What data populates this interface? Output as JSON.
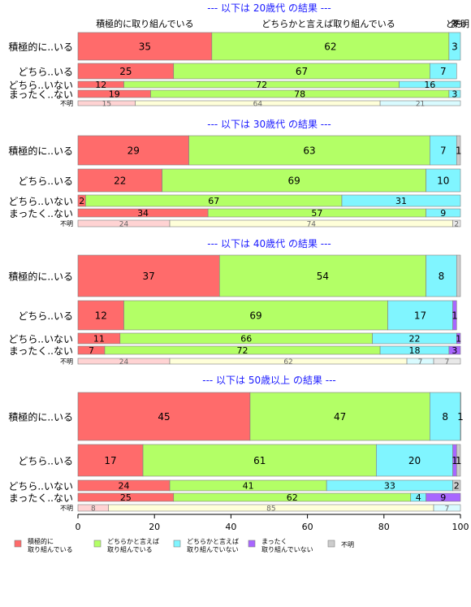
{
  "chart_data": {
    "type": "bar",
    "orientation": "horizontal",
    "stacked": true,
    "xlim": [
      0,
      100
    ],
    "x_ticks": [
      "0",
      "20",
      "40",
      "60",
      "80",
      "100"
    ],
    "grid": false,
    "legend_position": "bottom-left",
    "top_labels": [
      {
        "text": "積極的に取り組んでいる",
        "x": 17.5
      },
      {
        "text": "どちらかと言えば取り組んでいる",
        "x": 65.5
      },
      {
        "text": "どち",
        "x": 98.5
      },
      {
        "text": "まっ",
        "x": 99.5
      },
      {
        "text": "不明",
        "x": 100
      }
    ],
    "series": [
      {
        "name": "積極的に\n取り組んでいる",
        "color": "#ff6b6b"
      },
      {
        "name": "どちらかと言えば\n取り組んでいる",
        "color": "#b3ff66"
      },
      {
        "name": "どちらかと言えば\n取り組んでいない",
        "color": "#80f5ff"
      },
      {
        "name": "まったく\n取り組んでいない",
        "color": "#a866ff"
      },
      {
        "name": "不明",
        "color": "#cccccc"
      }
    ],
    "panels": [
      {
        "title": "--- 以下は 20歳代 の結果 ---",
        "rows": [
          {
            "label": "積極的に..いる",
            "values": [
              35,
              62,
              3,
              0,
              0
            ],
            "labels": [
              "35",
              "62",
              "3",
              "",
              ""
            ],
            "size": "large"
          },
          {
            "label": "どちら..いる",
            "values": [
              25,
              67,
              7,
              0,
              0
            ],
            "labels": [
              "25",
              "67",
              "7",
              "",
              ""
            ],
            "size": "medium"
          },
          {
            "label": "どちら..いない",
            "values": [
              12,
              72,
              16,
              0,
              0
            ],
            "labels": [
              "12",
              "72",
              "16",
              "",
              ""
            ],
            "size": "small"
          },
          {
            "label": "まったく..ない",
            "values": [
              19,
              78,
              3,
              0,
              0
            ],
            "labels": [
              "19",
              "78",
              "3",
              "",
              ""
            ],
            "size": "small"
          },
          {
            "label": "不明",
            "values": [
              15,
              64,
              21,
              0,
              0
            ],
            "labels": [
              "15",
              "64",
              "21",
              "",
              ""
            ],
            "size": "tiny"
          }
        ]
      },
      {
        "title": "--- 以下は 30歳代 の結果 ---",
        "rows": [
          {
            "label": "積極的に..いる",
            "values": [
              29,
              63,
              7,
              0,
              1
            ],
            "labels": [
              "29",
              "63",
              "7",
              "",
              "1"
            ],
            "size": "large"
          },
          {
            "label": "どちら..いる",
            "values": [
              22,
              69,
              10,
              0,
              0
            ],
            "labels": [
              "22",
              "69",
              "10",
              "",
              ""
            ],
            "size": "medium"
          },
          {
            "label": "どちら..いない",
            "values": [
              2,
              67,
              31,
              0,
              0
            ],
            "labels": [
              "2",
              "67",
              "31",
              "",
              ""
            ],
            "size": "small"
          },
          {
            "label": "まったく..ない",
            "values": [
              34,
              57,
              9,
              0,
              0
            ],
            "labels": [
              "34",
              "57",
              "9",
              "",
              ""
            ],
            "size": "small"
          },
          {
            "label": "不明",
            "values": [
              24,
              74,
              0,
              0,
              2
            ],
            "labels": [
              "24",
              "74",
              "",
              "",
              "2"
            ],
            "size": "tiny"
          }
        ]
      },
      {
        "title": "--- 以下は 40歳代 の結果 ---",
        "rows": [
          {
            "label": "積極的に..いる",
            "values": [
              37,
              54,
              8,
              0,
              1
            ],
            "labels": [
              "37",
              "54",
              "8",
              "",
              ""
            ],
            "size": "large"
          },
          {
            "label": "どちら..いる",
            "values": [
              12,
              69,
              17,
              1,
              0
            ],
            "labels": [
              "12",
              "69",
              "17",
              "1",
              ""
            ],
            "size": "medium"
          },
          {
            "label": "どちら..いない",
            "values": [
              11,
              66,
              22,
              1,
              0
            ],
            "labels": [
              "11",
              "66",
              "22",
              "1",
              ""
            ],
            "size": "small"
          },
          {
            "label": "まったく..ない",
            "values": [
              7,
              72,
              18,
              3,
              0
            ],
            "labels": [
              "7",
              "72",
              "18",
              "3",
              ""
            ],
            "size": "small"
          },
          {
            "label": "不明",
            "values": [
              24,
              62,
              7,
              0,
              7
            ],
            "labels": [
              "24",
              "62",
              "7",
              "",
              "7"
            ],
            "size": "tiny"
          }
        ]
      },
      {
        "title": "--- 以下は 50歳以上 の結果 ---",
        "rows": [
          {
            "label": "積極的に..いる",
            "values": [
              45,
              47,
              8,
              0,
              1
            ],
            "labels": [
              "45",
              "47",
              "8",
              "",
              "1"
            ],
            "size": "large"
          },
          {
            "label": "どちら..いる",
            "values": [
              17,
              61,
              20,
              1,
              1
            ],
            "labels": [
              "17",
              "61",
              "20",
              "1",
              "1"
            ],
            "size": "medium"
          },
          {
            "label": "どちら..いない",
            "values": [
              24,
              41,
              33,
              0,
              2
            ],
            "labels": [
              "24",
              "41",
              "33",
              "",
              "2"
            ],
            "size": "small"
          },
          {
            "label": "まったく..ない",
            "values": [
              25,
              62,
              4,
              9,
              0
            ],
            "labels": [
              "25",
              "62",
              "4",
              "9",
              ""
            ],
            "size": "small"
          },
          {
            "label": "不明",
            "values": [
              8,
              85,
              7,
              0,
              0
            ],
            "labels": [
              "8",
              "85",
              "7",
              "",
              ""
            ],
            "size": "tiny"
          }
        ]
      }
    ]
  }
}
